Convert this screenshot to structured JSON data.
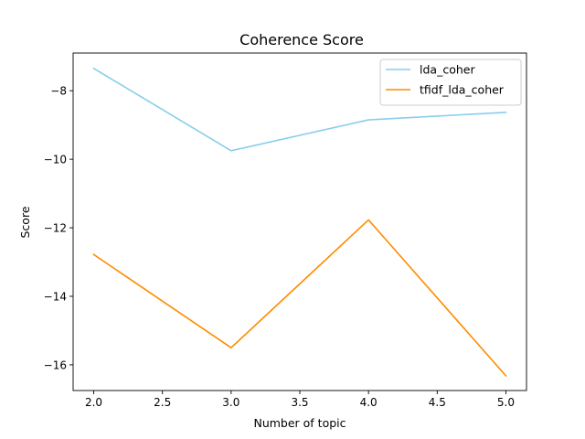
{
  "chart_data": {
    "type": "line",
    "title": "Coherence Score",
    "xlabel": "Number of topic",
    "ylabel": "Score",
    "xlim": [
      1.85,
      5.15
    ],
    "ylim": [
      -16.75,
      -6.9
    ],
    "xticks": [
      2.0,
      2.5,
      3.0,
      3.5,
      4.0,
      4.5,
      5.0
    ],
    "xtick_labels": [
      "2.0",
      "2.5",
      "3.0",
      "3.5",
      "4.0",
      "4.5",
      "5.0"
    ],
    "yticks": [
      -8,
      -10,
      -12,
      -14,
      -16
    ],
    "ytick_labels": [
      "−8",
      "−10",
      "−12",
      "−14",
      "−16"
    ],
    "grid": false,
    "legend_position": "top-right",
    "x": [
      2,
      3,
      4,
      5
    ],
    "series": [
      {
        "name": "lda_coher",
        "color": "#87ceeb",
        "values": [
          -7.35,
          -9.75,
          -8.85,
          -8.63
        ]
      },
      {
        "name": "tfidf_lda_coher",
        "color": "#ff8c00",
        "values": [
          -12.78,
          -15.5,
          -11.77,
          -16.32
        ]
      }
    ]
  }
}
